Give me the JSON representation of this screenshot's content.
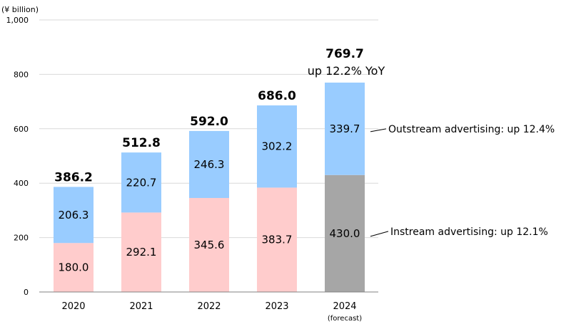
{
  "chart_data": {
    "type": "stacked-bar",
    "unit_label": "(¥ billion)",
    "ylim": [
      0,
      1000
    ],
    "yticks": [
      0,
      200,
      400,
      600,
      800,
      1000
    ],
    "ytick_labels": [
      "0",
      "200",
      "400",
      "600",
      "800",
      "1,000"
    ],
    "grid": true,
    "categories": [
      "2020",
      "2021",
      "2022",
      "2023",
      "2024"
    ],
    "category_sublabels": [
      "",
      "",
      "",
      "",
      "(forecast)"
    ],
    "series": [
      {
        "name": "Instream advertising",
        "values": [
          180.0,
          292.1,
          345.6,
          383.7,
          430.0
        ],
        "labels": [
          "180.0",
          "292.1",
          "345.6",
          "383.7",
          "430.0"
        ]
      },
      {
        "name": "Outstream advertising",
        "values": [
          206.3,
          220.7,
          246.3,
          302.2,
          339.7
        ],
        "labels": [
          "206.3",
          "220.7",
          "246.3",
          "302.2",
          "339.7"
        ]
      }
    ],
    "totals": [
      "386.2",
      "512.8",
      "592.0",
      "686.0",
      "769.7"
    ],
    "yoy_note": "up 12.2% YoY",
    "annotations": {
      "outstream": "Outstream advertising: up 12.4%",
      "instream": "Instream advertising: up 12.1%"
    },
    "colors": {
      "instream": "#ffcccc",
      "instream_forecast": "#a6a6a6",
      "outstream": "#99ccff",
      "grid": "#d9d9d9",
      "axis": "#808080"
    }
  }
}
